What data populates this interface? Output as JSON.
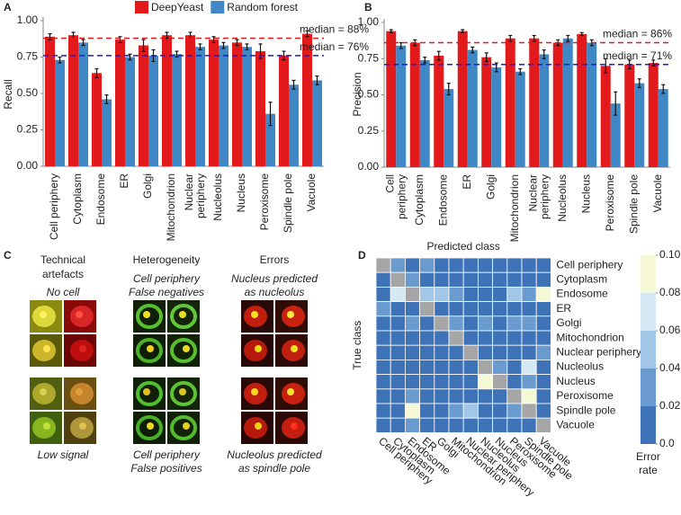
{
  "chart_data": [
    {
      "type": "bar",
      "panel_label": "A",
      "ylabel": "Recall",
      "legend": "top",
      "categories": [
        "Cell periphery",
        "Cytoplasm",
        "Endosome",
        "ER",
        "Golgi",
        "Mitochondrion",
        "Nuclear periphery",
        "Nucleolus",
        "Nucleus",
        "Peroxisome",
        "Spindle pole",
        "Vacuole"
      ],
      "series": [
        {
          "name": "DeepYeast",
          "color": "#e31a1c",
          "values": [
            0.89,
            0.9,
            0.64,
            0.87,
            0.83,
            0.9,
            0.9,
            0.87,
            0.85,
            0.79,
            0.76,
            0.91
          ],
          "errors": [
            0.02,
            0.02,
            0.03,
            0.02,
            0.04,
            0.02,
            0.02,
            0.02,
            0.02,
            0.05,
            0.03,
            0.02
          ]
        },
        {
          "name": "Random forest",
          "color": "#3f88c5",
          "values": [
            0.73,
            0.85,
            0.46,
            0.75,
            0.76,
            0.77,
            0.82,
            0.83,
            0.82,
            0.36,
            0.56,
            0.59
          ],
          "errors": [
            0.02,
            0.02,
            0.03,
            0.02,
            0.04,
            0.02,
            0.02,
            0.02,
            0.02,
            0.08,
            0.03,
            0.03
          ]
        }
      ],
      "medians": [
        {
          "value": 0.88,
          "label": "median = 88%",
          "color": "#e31a1c"
        },
        {
          "value": 0.76,
          "label": "median = 76%",
          "color": "#1a1ad0"
        }
      ],
      "ylim": [
        0,
        1.0
      ],
      "yticks": [
        {
          "value": 0,
          "label": "0.00"
        },
        {
          "value": 0.25,
          "label": "0.25"
        },
        {
          "value": 0.5,
          "label": "0.50"
        },
        {
          "value": 0.75,
          "label": "0.75"
        },
        {
          "value": 1.0,
          "label": "1.00"
        }
      ]
    },
    {
      "type": "bar",
      "panel_label": "B",
      "ylabel": "Precision",
      "categories": [
        "Cell periphery",
        "Cytoplasm",
        "Endosome",
        "ER",
        "Golgi",
        "Mitochondrion",
        "Nuclear periphery",
        "Nucleolus",
        "Nucleus",
        "Peroxisome",
        "Spindle pole",
        "Vacuole"
      ],
      "series": [
        {
          "name": "DeepYeast",
          "color": "#e31a1c",
          "values": [
            0.94,
            0.86,
            0.77,
            0.94,
            0.76,
            0.89,
            0.89,
            0.86,
            0.92,
            0.7,
            0.71,
            0.72
          ],
          "errors": [
            0.01,
            0.02,
            0.03,
            0.01,
            0.03,
            0.02,
            0.02,
            0.02,
            0.01,
            0.05,
            0.03,
            0.02
          ]
        },
        {
          "name": "Random forest",
          "color": "#3f88c5",
          "values": [
            0.84,
            0.74,
            0.54,
            0.81,
            0.69,
            0.66,
            0.78,
            0.89,
            0.86,
            0.44,
            0.58,
            0.54
          ],
          "errors": [
            0.02,
            0.02,
            0.04,
            0.02,
            0.03,
            0.02,
            0.03,
            0.02,
            0.02,
            0.08,
            0.03,
            0.03
          ]
        }
      ],
      "medians": [
        {
          "value": 0.86,
          "label": "median = 86%",
          "color": "#e31a1c"
        },
        {
          "value": 0.71,
          "label": "median = 71%",
          "color": "#1a1ad0"
        }
      ],
      "ylim": [
        0,
        1.0
      ],
      "yticks": [
        {
          "value": 0,
          "label": "0.00"
        },
        {
          "value": 0.25,
          "label": "0.25"
        },
        {
          "value": 0.5,
          "label": "0.50"
        },
        {
          "value": 0.75,
          "label": "0.75"
        },
        {
          "value": 1.0,
          "label": "1.00"
        }
      ]
    },
    {
      "type": "heatmap",
      "panel_label": "D",
      "xlabel": "Predicted class",
      "ylabel": "True class",
      "x_categories": [
        "Cell periphery",
        "Cytoplasm",
        "Endosome",
        "ER",
        "Golgi",
        "Mitochondrion",
        "Nuclear periphery",
        "Nucleolus",
        "Nucleus",
        "Peroxisome",
        "Spindle pole",
        "Vacuole"
      ],
      "y_categories": [
        "Cell periphery",
        "Cytoplasm",
        "Endosome",
        "ER",
        "Golgi",
        "Mitochondrion",
        "Nuclear periphery",
        "Nucleolus",
        "Nucleus",
        "Peroxisome",
        "Spindle pole",
        "Vacuole"
      ],
      "values": [
        [
          null,
          0.03,
          0.01,
          0.03,
          0.01,
          0.01,
          0.01,
          0.01,
          0.01,
          0.01,
          0.01,
          0.01
        ],
        [
          0.01,
          null,
          0.03,
          0.01,
          0.01,
          0.01,
          0.01,
          0.01,
          0.01,
          0.01,
          0.01,
          0.01
        ],
        [
          0.01,
          0.07,
          null,
          0.05,
          0.05,
          0.03,
          0.01,
          0.01,
          0.01,
          0.05,
          0.03,
          0.09
        ],
        [
          0.03,
          0.01,
          0.01,
          null,
          0.01,
          0.01,
          0.01,
          0.01,
          0.01,
          0.01,
          0.01,
          0.01
        ],
        [
          0.01,
          0.01,
          0.03,
          0.01,
          null,
          0.03,
          0.01,
          0.03,
          0.01,
          0.03,
          0.03,
          0.01
        ],
        [
          0.01,
          0.01,
          0.01,
          0.01,
          0.01,
          null,
          0.01,
          0.01,
          0.01,
          0.01,
          0.01,
          0.01
        ],
        [
          0.01,
          0.01,
          0.01,
          0.01,
          0.01,
          0.01,
          null,
          0.01,
          0.01,
          0.01,
          0.01,
          0.03
        ],
        [
          0.01,
          0.01,
          0.01,
          0.01,
          0.01,
          0.01,
          0.01,
          null,
          0.03,
          0.01,
          0.07,
          0.01
        ],
        [
          0.01,
          0.01,
          0.01,
          0.01,
          0.01,
          0.01,
          0.01,
          0.09,
          null,
          0.01,
          0.03,
          0.01
        ],
        [
          0.01,
          0.01,
          0.03,
          0.01,
          0.01,
          0.01,
          0.01,
          0.01,
          0.01,
          null,
          0.1,
          0.01
        ],
        [
          0.01,
          0.01,
          0.09,
          0.01,
          0.01,
          0.03,
          0.05,
          0.01,
          0.01,
          0.03,
          null,
          0.01
        ],
        [
          0.01,
          0.01,
          0.03,
          0.01,
          0.01,
          0.01,
          0.01,
          0.01,
          0.01,
          0.01,
          0.01,
          null
        ]
      ],
      "diagonal_color": "#a6a6a6",
      "colorbar": {
        "lim": [
          0,
          0.1
        ],
        "colors": [
          "#3e74b7",
          "#6a9bcf",
          "#a2c6e5",
          "#d4e9f3",
          "#f4f8d4"
        ],
        "ticks": [
          {
            "value": 0,
            "label": "0.0"
          },
          0.02,
          0.04,
          0.06,
          0.08,
          {
            "value": 0.1,
            "label": "0.10"
          }
        ],
        "label": [
          "Error",
          "rate"
        ]
      }
    }
  ],
  "panel_c": {
    "label": "C",
    "columns": [
      {
        "title": [
          "Technical",
          "artefacts"
        ],
        "top_caption": [
          "No cell"
        ],
        "bottom_caption": [
          "Low signal"
        ]
      },
      {
        "title": [
          "Heterogeneity"
        ],
        "top_caption": [
          "Cell periphery",
          "False negatives"
        ],
        "bottom_caption": [
          "Cell periphery",
          "False positives"
        ]
      },
      {
        "title": [
          "Errors"
        ],
        "top_caption": [
          "Nucleus predicted",
          "as nucleolus"
        ],
        "bottom_caption": [
          "Nucleolus predicted",
          "as spindle pole"
        ]
      }
    ]
  }
}
